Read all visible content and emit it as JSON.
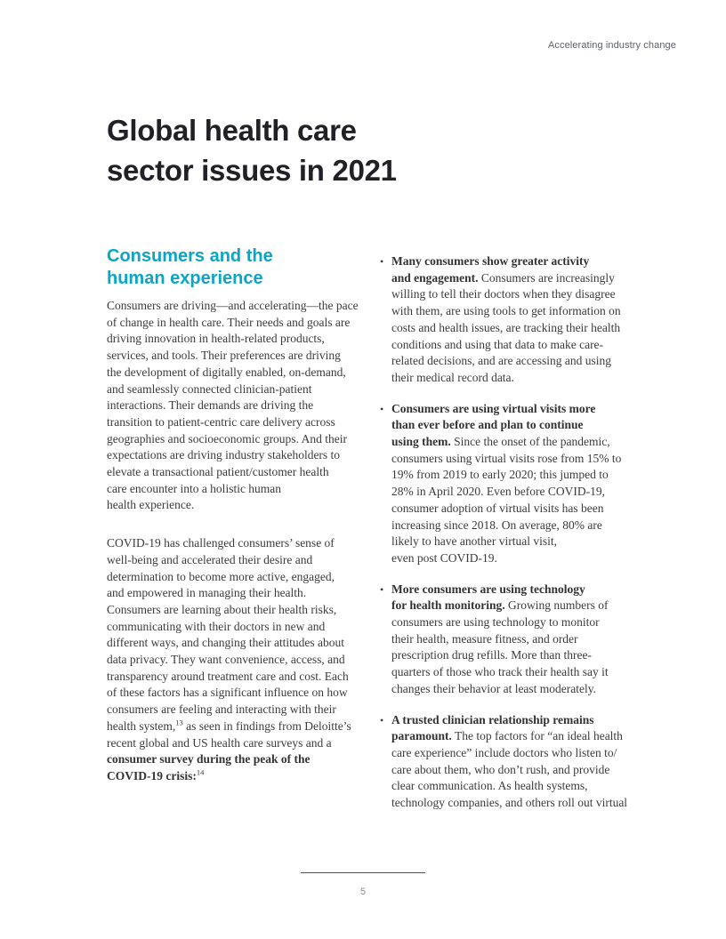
{
  "theme": {
    "accent_teal": "#0aa5c7",
    "title_color": "#202026",
    "body_color": "#3b3b3d",
    "muted_gray": "#5c6066",
    "page_number_gray": "#8c9196"
  },
  "header": {
    "label": "Accelerating industry change"
  },
  "title": "Global health care\nsector issues in 2021",
  "left_column": {
    "heading": "Consumers and the\nhuman experience",
    "para1": "Consumers are driving—and accelerating—the pace\nof change in health care. Their needs and goals are\ndriving innovation in health-related products,\nservices, and tools. Their preferences are driving\nthe development of digitally enabled, on-demand,\nand seamlessly connected clinician-patient\ninteractions. Their demands are driving the\ntransition to patient-centric care delivery across\ngeographies and socioeconomic groups. And their\nexpectations are driving industry stakeholders to\nelevate a transactional patient/customer health\ncare encounter into a holistic human\nhealth experience.",
    "para2_part1": "COVID-19 has challenged consumers’ sense of\nwell-being and accelerated their desire and\ndetermination to become more active, engaged,\nand empowered in managing their health.\nConsumers are learning about their health risks,\ncommunicating with their doctors in new and\ndifferent ways, and changing their attitudes about\ndata privacy. They want convenience, access, and\ntransparency around treatment care and cost. Each\nof these factors has a significant influence on how\nconsumers are feeling and interacting with their\nhealth system,",
    "para2_sup1": "13",
    "para2_part2": " as seen in findings from Deloitte’s\nrecent global and US health care surveys and a\n",
    "para2_link": "consumer survey during the peak of the\nCOVID-19 crisis:",
    "para2_sup2": "14"
  },
  "right_column": {
    "bullets": [
      {
        "lead": "Many consumers show greater activity\nand engagement.",
        "text": " Consumers are increasingly\nwilling to tell their doctors when they disagree\nwith them, are using tools to get information on\ncosts and health issues, are tracking their health\nconditions and using that data to make care-\nrelated decisions, and are accessing and using\ntheir medical record data."
      },
      {
        "lead": "Consumers are using virtual visits more\nthan ever before and plan to continue\nusing them.",
        "text": " Since the onset of the pandemic,\nconsumers using virtual visits rose from 15% to\n19% from 2019 to early 2020; this jumped to\n28% in April 2020. Even before COVID-19,\nconsumer adoption of virtual visits has been\nincreasing since 2018. On average, 80% are\nlikely to have another virtual visit,\neven post COVID-19."
      },
      {
        "lead": "More consumers are using technology\nfor health monitoring.",
        "text": " Growing numbers of\nconsumers are using technology to monitor\ntheir health, measure fitness, and order\nprescription drug refills. More than three-\nquarters of those who track their health say it\nchanges their behavior at least moderately."
      },
      {
        "lead": "A trusted clinician relationship remains\nparamount.",
        "text": " The top factors for “an ideal health\ncare experience” include doctors who listen to/\ncare about them, who don’t rush, and provide\nclear communication. As health systems,\ntechnology companies, and others roll out virtual"
      }
    ]
  },
  "footer": {
    "page_number": "5"
  }
}
